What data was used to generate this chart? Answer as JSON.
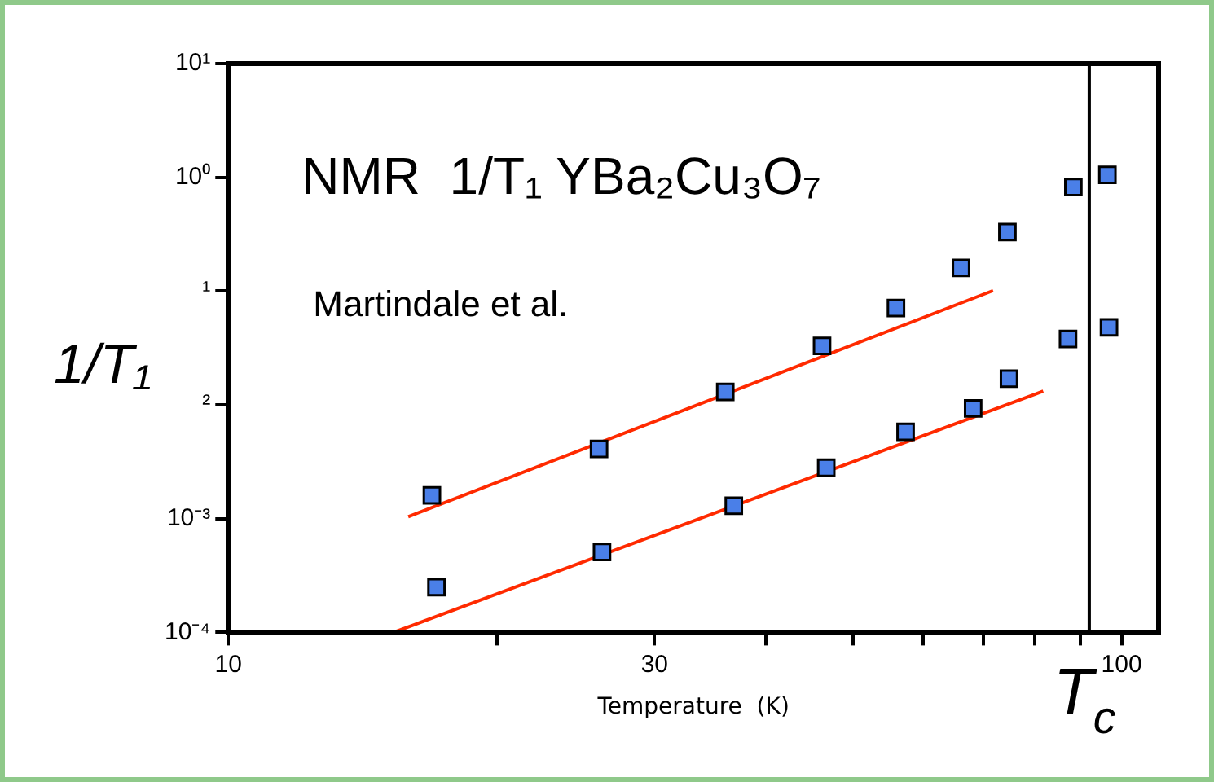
{
  "chart_data": {
    "type": "scatter",
    "title": "NMR  1/T₁ YBa₂Cu₃O₇",
    "xlabel": "Temperature  (K)",
    "ylabel": "1/T₁",
    "annotations": [
      "Martindale et al."
    ],
    "log": "xy",
    "grid": false,
    "legend": false,
    "marker": "square",
    "xlim": [
      10,
      110
    ],
    "ylim": [
      0.0001,
      10
    ],
    "xticks": [
      10,
      {
        "value": 20,
        "label": null
      },
      30,
      {
        "value": 40,
        "label": null
      },
      {
        "value": 50,
        "label": null
      },
      {
        "value": 60,
        "label": null
      },
      {
        "value": 70,
        "label": null
      },
      {
        "value": 80,
        "label": null
      },
      {
        "value": 90,
        "label": null
      },
      100
    ],
    "yticks": [
      {
        "value": 0.0001,
        "label": "10⁻⁴"
      },
      {
        "value": 0.001,
        "label": "10⁻³"
      },
      {
        "value": 0.01,
        "label": "²"
      },
      {
        "value": 0.1,
        "label": "¹"
      },
      {
        "value": 1,
        "label": "10⁰"
      },
      {
        "value": 10,
        "label": "10¹"
      }
    ],
    "ref_lines": [
      {
        "axis": "x",
        "value": 92,
        "label": "T$_{c}$",
        "color": "#000000"
      }
    ],
    "series": [
      {
        "color": "#4a7fe8",
        "x": [
          16.9,
          26.0,
          36.0,
          46.2,
          55.9,
          66.1,
          74.5,
          88.3,
          96.4
        ],
        "values": [
          0.0016,
          0.0041,
          0.013,
          0.033,
          0.071,
          0.16,
          0.33,
          0.82,
          1.05
        ]
      },
      {
        "color": "#4a7fe8",
        "x": [
          17.1,
          26.2,
          36.8,
          46.7,
          57.3,
          68.2,
          74.8,
          87.1,
          96.8
        ],
        "values": [
          0.00025,
          0.00051,
          0.0013,
          0.0028,
          0.0058,
          0.0093,
          0.017,
          0.038,
          0.048
        ]
      },
      {
        "type": "line",
        "color": "#ff2a00",
        "marker": "none",
        "x": [
          15.9,
          71.8
        ],
        "values": [
          0.00104,
          0.101
        ]
      },
      {
        "type": "line",
        "color": "#ff2a00",
        "marker": "none",
        "x": [
          15.3,
          81.7
        ],
        "values": [
          0.0001,
          0.0132
        ]
      }
    ]
  }
}
